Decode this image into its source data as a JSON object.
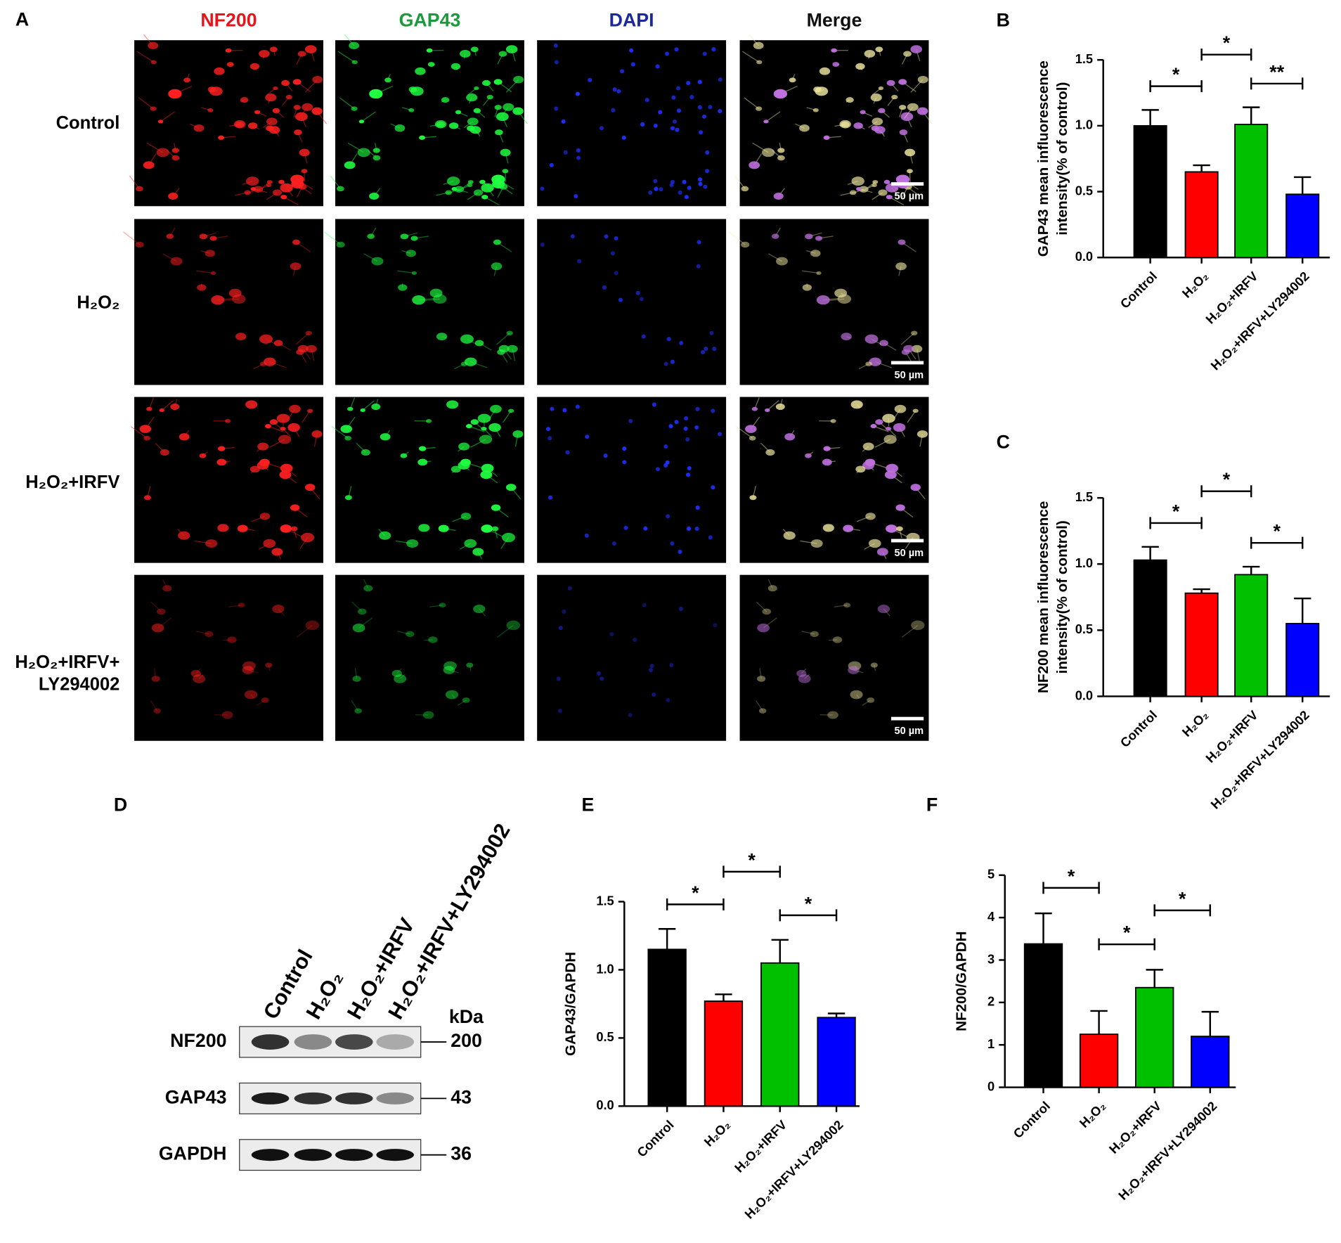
{
  "panel_a": {
    "label": "A",
    "columns": [
      "NF200",
      "GAP43",
      "DAPI",
      "Merge"
    ],
    "column_colors": [
      "#e8141c",
      "#1a9a3a",
      "#1a2a9a",
      "#111111"
    ],
    "rows": [
      [
        "Control"
      ],
      [
        "H₂O₂"
      ],
      [
        "H₂O₂+IRFV"
      ],
      [
        "H₂O₂+IRFV+",
        "LY294002"
      ]
    ],
    "scale_bar": "50 µm"
  },
  "panel_d": {
    "label": "D",
    "lanes": [
      "Control",
      "H₂O₂",
      "H₂O₂+IRFV",
      "H₂O₂+IRFV+LY294002"
    ],
    "unit": "kDa",
    "bands": [
      {
        "name": "NF200",
        "kda": "200"
      },
      {
        "name": "GAP43",
        "kda": "43"
      },
      {
        "name": "GAPDH",
        "kda": "36"
      }
    ]
  },
  "chart_data": [
    {
      "type": "bar",
      "panel": "B",
      "y_label": [
        "GAP43 mean influorescence",
        "intensity(% of control)"
      ],
      "categories": [
        "Control",
        "H₂O₂",
        "H₂O₂+IRFV",
        "H₂O₂+IRFV+LY294002"
      ],
      "values": [
        1.0,
        0.65,
        1.01,
        0.48
      ],
      "errors": [
        0.12,
        0.05,
        0.13,
        0.13
      ],
      "colors": [
        "#000000",
        "#ff0000",
        "#00c000",
        "#0000ff"
      ],
      "ylim": [
        0,
        1.5
      ],
      "yticks": [
        {
          "value": 0,
          "label": "0.0"
        },
        {
          "value": 0.5,
          "label": "0.5"
        },
        {
          "value": 1,
          "label": "1.0"
        },
        {
          "value": 1.5,
          "label": "1.5"
        }
      ],
      "significance": [
        {
          "from": 0,
          "to": 1,
          "label": "*"
        },
        {
          "from": 1,
          "to": 2,
          "label": "*"
        },
        {
          "from": 2,
          "to": 3,
          "label": "**"
        }
      ]
    },
    {
      "type": "bar",
      "panel": "C",
      "y_label": [
        "NF200 mean influorescence",
        "intensity(% of control)"
      ],
      "categories": [
        "Control",
        "H₂O₂",
        "H₂O₂+IRFV",
        "H₂O₂+IRFV+LY294002"
      ],
      "values": [
        1.03,
        0.78,
        0.92,
        0.55
      ],
      "errors": [
        0.1,
        0.03,
        0.06,
        0.19
      ],
      "colors": [
        "#000000",
        "#ff0000",
        "#00c000",
        "#0000ff"
      ],
      "ylim": [
        0,
        1.5
      ],
      "yticks": [
        {
          "value": 0,
          "label": "0.0"
        },
        {
          "value": 0.5,
          "label": "0.5"
        },
        {
          "value": 1,
          "label": "1.0"
        },
        {
          "value": 1.5,
          "label": "1.5"
        }
      ],
      "significance": [
        {
          "from": 0,
          "to": 1,
          "label": "*"
        },
        {
          "from": 1,
          "to": 2,
          "label": "*"
        },
        {
          "from": 2,
          "to": 3,
          "label": "*"
        }
      ]
    },
    {
      "type": "bar",
      "panel": "E",
      "y_label": [
        "GAP43/GAPDH"
      ],
      "categories": [
        "Control",
        "H₂O₂",
        "H₂O₂+IRFV",
        "H₂O₂+IRFV+LY294002"
      ],
      "values": [
        1.15,
        0.77,
        1.05,
        0.65
      ],
      "errors": [
        0.15,
        0.05,
        0.17,
        0.03
      ],
      "colors": [
        "#000000",
        "#ff0000",
        "#00c000",
        "#0000ff"
      ],
      "ylim": [
        0,
        1.5
      ],
      "yticks": [
        {
          "value": 0,
          "label": "0.0"
        },
        {
          "value": 0.5,
          "label": "0.5"
        },
        {
          "value": 1,
          "label": "1.0"
        },
        {
          "value": 1.5,
          "label": "1.5"
        }
      ],
      "significance": [
        {
          "from": 0,
          "to": 1,
          "label": "*"
        },
        {
          "from": 1,
          "to": 2,
          "label": "*"
        },
        {
          "from": 2,
          "to": 3,
          "label": "*"
        }
      ]
    },
    {
      "type": "bar",
      "panel": "F",
      "y_label": [
        "NF200/GAPDH"
      ],
      "categories": [
        "Control",
        "H₂O₂",
        "H₂O₂+IRFV",
        "H₂O₂+IRFV+LY294002"
      ],
      "values": [
        3.38,
        1.25,
        2.35,
        1.2
      ],
      "errors": [
        0.72,
        0.55,
        0.42,
        0.58
      ],
      "colors": [
        "#000000",
        "#ff0000",
        "#00c000",
        "#0000ff"
      ],
      "ylim": [
        0,
        5
      ],
      "yticks": [
        0,
        1,
        2,
        3,
        4,
        5
      ],
      "significance": [
        {
          "from": 0,
          "to": 1,
          "label": "*"
        },
        {
          "from": 1,
          "to": 2,
          "label": "*"
        },
        {
          "from": 2,
          "to": 3,
          "label": "*"
        }
      ]
    }
  ]
}
